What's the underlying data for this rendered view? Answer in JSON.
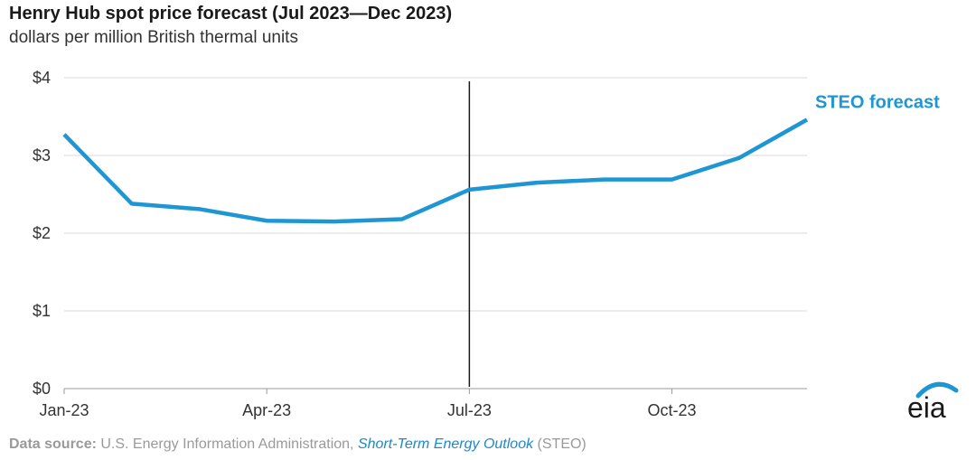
{
  "chart_data": {
    "type": "line",
    "title": "Henry Hub spot price forecast (Jul 2023—Dec 2023)",
    "subtitle": "dollars per million British thermal units",
    "x": [
      "Jan-23",
      "Feb-23",
      "Mar-23",
      "Apr-23",
      "May-23",
      "Jun-23",
      "Jul-23",
      "Aug-23",
      "Sep-23",
      "Oct-23",
      "Nov-23",
      "Dec-23"
    ],
    "x_tick_labels": [
      "Jan-23",
      "Apr-23",
      "Jul-23",
      "Oct-23"
    ],
    "series": [
      {
        "name": "STEO forecast",
        "color": "#1e96d4",
        "values": [
          3.27,
          2.38,
          2.31,
          2.16,
          2.15,
          2.18,
          2.56,
          2.65,
          2.69,
          2.69,
          2.97,
          3.46
        ]
      }
    ],
    "y_tick_labels": [
      "$0",
      "$1",
      "$2",
      "$3",
      "$4"
    ],
    "y_ticks": [
      0,
      1,
      2,
      3,
      4
    ],
    "ylim": [
      0,
      4
    ],
    "forecast_start": "Jul-23",
    "grid": true,
    "legend": "inline-right"
  },
  "source": {
    "prefix": "Data source:",
    "text": " U.S. Energy Information Administration, ",
    "italic": "Short-Term Energy Outlook",
    "suffix": " (STEO)"
  },
  "logo": {
    "text": "eia",
    "color": "#1e96d4",
    "name": "eia-logo"
  }
}
